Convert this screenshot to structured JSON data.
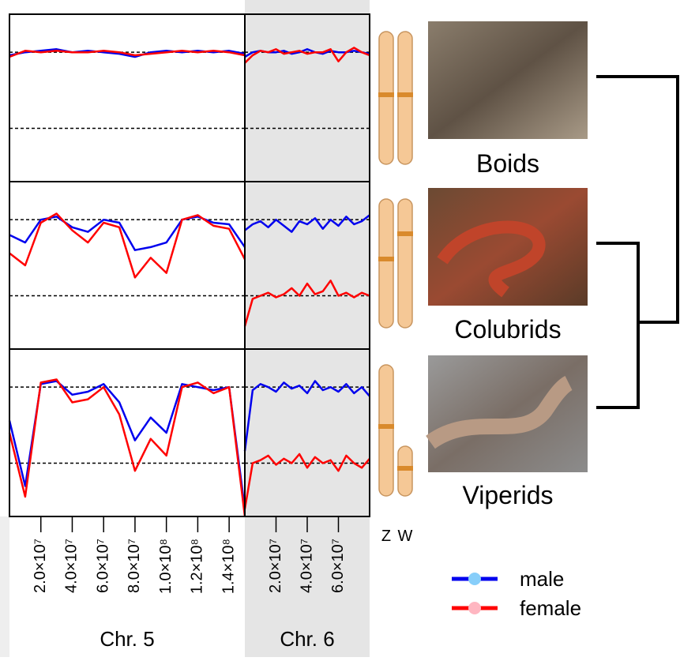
{
  "chart_data": [
    {
      "type": "line",
      "xlim": [
        0,
        150000000
      ],
      "ylim": [
        0.15,
        1.25
      ],
      "reference_lines": [
        1,
        0.5
      ],
      "background": "#ffffff",
      "x": [
        0,
        10000000,
        20000000,
        30000000,
        40000000,
        50000000,
        60000000,
        70000000,
        80000000,
        90000000,
        100000000,
        110000000,
        120000000,
        130000000,
        140000000,
        150000000
      ],
      "series": [
        {
          "color": "#0000ee",
          "values": [
            0.98,
            1.0,
            1.01,
            1.02,
            1.0,
            1.01,
            1.0,
            0.99,
            0.97,
            1.0,
            1.01,
            1.0,
            1.01,
            1.0,
            1.01,
            0.99
          ]
        },
        {
          "color": "#ff0000",
          "values": [
            0.97,
            1.01,
            1.0,
            1.01,
            1.0,
            1.0,
            1.01,
            1.0,
            0.98,
            0.99,
            1.0,
            1.01,
            1.0,
            1.01,
            1.0,
            0.98
          ]
        }
      ]
    },
    {
      "type": "line",
      "xlim": [
        0,
        80000000
      ],
      "ylim": [
        0.15,
        1.25
      ],
      "reference_lines": [
        1,
        0.5
      ],
      "background": "#e5e5e5",
      "x": [
        0,
        5000000,
        10000000,
        15000000,
        20000000,
        25000000,
        30000000,
        35000000,
        40000000,
        45000000,
        50000000,
        55000000,
        60000000,
        65000000,
        70000000,
        75000000,
        80000000
      ],
      "series": [
        {
          "color": "#0000ee",
          "values": [
            0.97,
            1.0,
            1.01,
            1.0,
            1.0,
            1.01,
            0.99,
            1.0,
            1.02,
            1.0,
            0.99,
            1.01,
            1.0,
            1.0,
            1.01,
            1.0,
            0.99
          ]
        },
        {
          "color": "#ff0000",
          "values": [
            0.93,
            0.98,
            1.01,
            1.0,
            1.02,
            0.99,
            1.0,
            1.01,
            0.99,
            1.0,
            1.0,
            1.02,
            0.94,
            1.0,
            1.03,
            1.0,
            0.98
          ]
        }
      ]
    },
    {
      "type": "line",
      "xlim": [
        0,
        150000000
      ],
      "ylim": [
        0.15,
        1.25
      ],
      "reference_lines": [
        1,
        0.5
      ],
      "background": "#ffffff",
      "x": [
        0,
        10000000,
        20000000,
        30000000,
        40000000,
        50000000,
        60000000,
        70000000,
        80000000,
        90000000,
        100000000,
        110000000,
        120000000,
        130000000,
        140000000,
        150000000
      ],
      "series": [
        {
          "color": "#0000ee",
          "values": [
            0.9,
            0.85,
            1.0,
            1.02,
            0.95,
            0.92,
            1.0,
            0.98,
            0.8,
            0.82,
            0.85,
            1.0,
            1.02,
            0.98,
            0.97,
            0.82
          ]
        },
        {
          "color": "#ff0000",
          "values": [
            0.78,
            0.7,
            0.98,
            1.04,
            0.93,
            0.85,
            0.98,
            0.95,
            0.62,
            0.75,
            0.65,
            1.0,
            1.03,
            0.96,
            0.94,
            0.74
          ]
        }
      ]
    },
    {
      "type": "line",
      "xlim": [
        0,
        80000000
      ],
      "ylim": [
        0.15,
        1.25
      ],
      "reference_lines": [
        1,
        0.5
      ],
      "background": "#e5e5e5",
      "x": [
        0,
        5000000,
        10000000,
        15000000,
        20000000,
        25000000,
        30000000,
        35000000,
        40000000,
        45000000,
        50000000,
        55000000,
        60000000,
        65000000,
        70000000,
        75000000,
        80000000
      ],
      "series": [
        {
          "color": "#0000ee",
          "values": [
            0.93,
            0.97,
            0.99,
            0.95,
            1.0,
            0.96,
            0.92,
            0.99,
            0.97,
            1.01,
            0.94,
            1.0,
            0.96,
            1.02,
            0.97,
            0.99,
            1.03
          ]
        },
        {
          "color": "#ff0000",
          "values": [
            0.3,
            0.48,
            0.5,
            0.52,
            0.49,
            0.51,
            0.55,
            0.5,
            0.58,
            0.51,
            0.53,
            0.6,
            0.5,
            0.52,
            0.49,
            0.52,
            0.5
          ]
        }
      ]
    },
    {
      "type": "line",
      "xlim": [
        0,
        150000000
      ],
      "ylim": [
        0.15,
        1.25
      ],
      "reference_lines": [
        1,
        0.5
      ],
      "background": "#ffffff",
      "x": [
        0,
        10000000,
        20000000,
        30000000,
        40000000,
        50000000,
        60000000,
        70000000,
        80000000,
        90000000,
        100000000,
        110000000,
        120000000,
        130000000,
        140000000,
        150000000
      ],
      "series": [
        {
          "color": "#0000ee",
          "values": [
            0.78,
            0.35,
            1.02,
            1.04,
            0.95,
            0.97,
            1.02,
            0.9,
            0.65,
            0.8,
            0.7,
            1.02,
            1.0,
            0.98,
            1.0,
            0.2
          ]
        },
        {
          "color": "#ff0000",
          "values": [
            0.7,
            0.28,
            1.03,
            1.05,
            0.9,
            0.92,
            1.0,
            0.82,
            0.45,
            0.66,
            0.55,
            1.0,
            1.03,
            0.96,
            1.0,
            0.15
          ]
        }
      ]
    },
    {
      "type": "line",
      "xlim": [
        0,
        80000000
      ],
      "ylim": [
        0.15,
        1.25
      ],
      "reference_lines": [
        1,
        0.5
      ],
      "background": "#e5e5e5",
      "x": [
        0,
        5000000,
        10000000,
        15000000,
        20000000,
        25000000,
        30000000,
        35000000,
        40000000,
        45000000,
        50000000,
        55000000,
        60000000,
        65000000,
        70000000,
        75000000,
        80000000
      ],
      "series": [
        {
          "color": "#0000ee",
          "values": [
            0.58,
            0.98,
            1.02,
            1.0,
            0.97,
            1.03,
            0.99,
            1.01,
            0.96,
            1.04,
            0.98,
            1.0,
            0.97,
            1.02,
            0.96,
            1.0,
            0.94
          ]
        },
        {
          "color": "#ff0000",
          "values": [
            0.2,
            0.5,
            0.52,
            0.55,
            0.49,
            0.53,
            0.5,
            0.56,
            0.47,
            0.54,
            0.5,
            0.52,
            0.45,
            0.55,
            0.5,
            0.47,
            0.53
          ]
        }
      ]
    }
  ],
  "axes": [
    {
      "label": "Chr. 5",
      "xticks": [
        {
          "value": 20000000,
          "label": "2.0×10⁷"
        },
        {
          "value": 40000000,
          "label": "4.0×10⁷"
        },
        {
          "value": 60000000,
          "label": "6.0×10⁷"
        },
        {
          "value": 80000000,
          "label": "8.0×10⁷"
        },
        {
          "value": 100000000,
          "label": "1.0×10⁸"
        },
        {
          "value": 120000000,
          "label": "1.2×10⁸"
        },
        {
          "value": 140000000,
          "label": "1.4×10⁸"
        }
      ]
    },
    {
      "label": "Chr. 6",
      "xticks": [
        {
          "value": 20000000,
          "label": "2.0×10⁷"
        },
        {
          "value": 40000000,
          "label": "4.0×10⁷"
        },
        {
          "value": 60000000,
          "label": "6.0×10⁷"
        }
      ]
    }
  ],
  "legend": [
    {
      "name": "male",
      "color": "#0000ee",
      "point_color": "#87cefa"
    },
    {
      "name": "female",
      "color": "#ff0000",
      "point_color": "#ffb6c1"
    }
  ],
  "taxa": [
    "Boids",
    "Colubrids",
    "Viperids"
  ],
  "chromosome_labels": [
    "Z",
    "W"
  ]
}
